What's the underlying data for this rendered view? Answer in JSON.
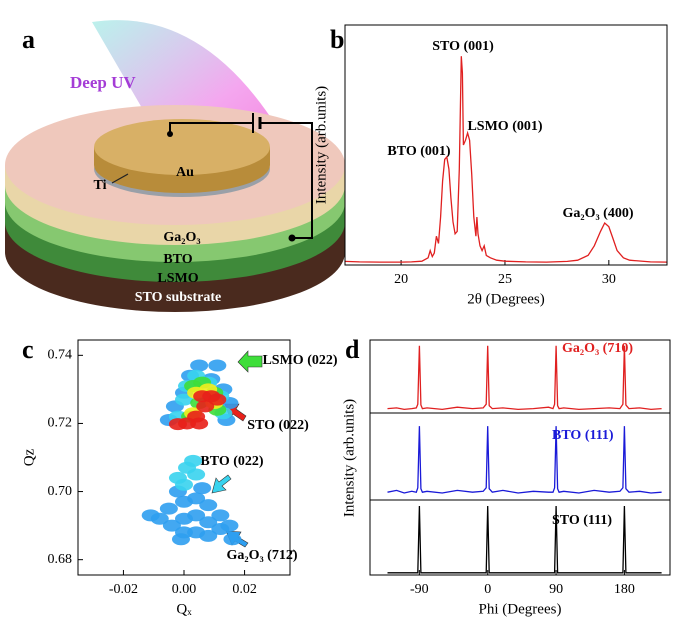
{
  "schematic": {
    "label": "a",
    "light": "Deep UV",
    "electrode": "Au",
    "adhesion": "Ti",
    "layers": [
      "Ga₂O₃",
      "BTO",
      "LSMO",
      "STO substrate"
    ]
  },
  "chart_data": [
    {
      "type": "line",
      "panel_label": "b",
      "xlabel": "2θ (Degrees)",
      "ylabel": "Intensity (arb.units)",
      "color": "#e02020",
      "xlim": [
        17.3,
        32.8
      ],
      "xticks": [
        20,
        25,
        30
      ],
      "ylim": [
        0,
        100
      ],
      "annotations": [
        "STO (001)",
        "LSMO (001)",
        "BTO (001)",
        "Ga₂O₃ (400)"
      ],
      "x": [
        17.3,
        18,
        19,
        20,
        20.5,
        21,
        21.3,
        21.4,
        21.5,
        21.6,
        21.7,
        21.8,
        21.9,
        22,
        22.1,
        22.2,
        22.3,
        22.4,
        22.5,
        22.6,
        22.7,
        22.8,
        22.9,
        22.95,
        23,
        23.1,
        23.2,
        23.3,
        23.4,
        23.5,
        23.6,
        23.65,
        23.7,
        23.8,
        23.9,
        24,
        24.1,
        24.3,
        24.6,
        25,
        26,
        27,
        28,
        28.5,
        29,
        29.3,
        29.6,
        29.8,
        30,
        30.2,
        30.4,
        30.7,
        31,
        32,
        32.8
      ],
      "values": [
        1.5,
        1.3,
        1.2,
        1.2,
        1.3,
        1.6,
        3,
        6,
        3.5,
        5,
        12,
        9,
        20,
        35,
        44,
        45,
        40,
        28,
        18,
        13,
        14,
        40,
        87,
        80,
        50,
        52,
        55,
        52,
        38,
        20,
        12,
        20,
        13,
        8,
        6,
        8,
        4,
        3,
        2,
        1.6,
        1.3,
        1.2,
        1.5,
        2,
        4,
        8,
        14,
        17.5,
        16,
        11,
        6,
        3,
        2,
        1.3,
        1.2
      ]
    },
    {
      "type": "scatter",
      "panel_label": "c",
      "xlabel": "Qₓ",
      "ylabel": "Qz",
      "xlim": [
        -0.035,
        0.035
      ],
      "xticks": [
        -0.02,
        {
          "value": 0,
          "label": "0.00"
        },
        0.02
      ],
      "ylim": [
        0.6755,
        0.7445
      ],
      "yticks": [
        0.68,
        {
          "value": 0.7,
          "label": "0.70"
        },
        0.72,
        0.74
      ],
      "annotations": [
        "LSMO (022)",
        "STO (022)",
        "BTO (022)",
        "Ga₂O₃ (712̄)"
      ],
      "series": [
        {
          "color": "#2f9ff0",
          "x": [
            -0.008,
            -0.005,
            -0.004,
            0,
            0,
            0,
            0.004,
            0.004,
            0.004,
            0.008,
            0.008,
            0.008,
            0.012,
            0.012,
            0.015,
            -0.011,
            -0.002,
            0.006,
            0.016,
            -0.001,
            -0.005,
            0,
            0.002,
            0.005,
            0.009,
            0.013,
            0.015,
            0.014,
            -0.003,
            0.011
          ],
          "values": [
            0.692,
            0.695,
            0.69,
            0.697,
            0.692,
            0.688,
            0.698,
            0.693,
            0.688,
            0.696,
            0.691,
            0.687,
            0.693,
            0.689,
            0.69,
            0.693,
            0.7,
            0.701,
            0.686,
            0.686,
            0.721,
            0.729,
            0.734,
            0.737,
            0.733,
            0.73,
            0.726,
            0.721,
            0.725,
            0.737
          ]
        },
        {
          "color": "#38d3ee",
          "x": [
            -0.002,
            0.001,
            0.004,
            0,
            0.003,
            0.001,
            0.004,
            0.008,
            0.012,
            0.013,
            -0.002,
            0
          ],
          "values": [
            0.704,
            0.707,
            0.705,
            0.702,
            0.709,
            0.731,
            0.734,
            0.732,
            0.728,
            0.723,
            0.722,
            0.727
          ]
        },
        {
          "color": "#3ede3a",
          "x": [
            0.003,
            0.006,
            0.01,
            0.011,
            0.002,
            0.005
          ],
          "values": [
            0.731,
            0.732,
            0.729,
            0.724,
            0.722,
            0.726
          ]
        },
        {
          "color": "#f2ee1e",
          "x": [
            0.004,
            0.008,
            0.01,
            0.003
          ],
          "values": [
            0.729,
            0.73,
            0.726,
            0.723
          ]
        },
        {
          "color": "#e8201a",
          "x": [
            0.006,
            0.009,
            0.011,
            0.007,
            0.004,
            0.001,
            -0.002,
            0.005
          ],
          "values": [
            0.728,
            0.728,
            0.727,
            0.725,
            0.722,
            0.72,
            0.7198,
            0.72
          ]
        }
      ]
    },
    {
      "type": "line",
      "panel_label": "d",
      "xlim": [
        -155,
        240
      ],
      "ylim": [
        0,
        100
      ],
      "x": [
        -132,
        -120,
        -110,
        -100,
        -94,
        -92,
        -90,
        -88,
        -86,
        -80,
        -60,
        -40,
        -20,
        -6,
        -2,
        0,
        2,
        6,
        20,
        40,
        60,
        80,
        86,
        88,
        90,
        92,
        94,
        100,
        120,
        140,
        160,
        174,
        178,
        180,
        182,
        186,
        200,
        215,
        229
      ],
      "series": [
        {
          "name": "Ga₂O₃ (710)",
          "color": "#e02020",
          "values": [
            6,
            7,
            5,
            6,
            7,
            12,
            92,
            11,
            6,
            7,
            5,
            8,
            6,
            7,
            12,
            92,
            10,
            6,
            7,
            5,
            6,
            8,
            6,
            12,
            92,
            10,
            6,
            7,
            5,
            6,
            7,
            6,
            12,
            92,
            11,
            6,
            7,
            5,
            6
          ]
        }
      ]
    },
    {
      "type": "line",
      "ylabel": "Intensity (arb.units)",
      "xlim": [
        -155,
        240
      ],
      "ylim": [
        0,
        100
      ],
      "x": [
        -132,
        -120,
        -110,
        -100,
        -94,
        -92,
        -90,
        -88,
        -86,
        -80,
        -60,
        -40,
        -20,
        -6,
        -2,
        0,
        2,
        6,
        20,
        40,
        60,
        80,
        86,
        88,
        90,
        92,
        94,
        100,
        120,
        140,
        160,
        174,
        178,
        180,
        182,
        186,
        200,
        215,
        229
      ],
      "series": [
        {
          "name": "BTO (111)",
          "color": "#1a1ad8",
          "values": [
            9,
            11,
            8,
            10,
            9,
            14,
            85,
            13,
            9,
            10,
            8,
            11,
            9,
            10,
            14,
            85,
            13,
            9,
            11,
            8,
            10,
            9,
            9,
            14,
            85,
            13,
            9,
            10,
            8,
            11,
            9,
            10,
            14,
            85,
            13,
            9,
            10,
            8,
            9
          ]
        }
      ]
    },
    {
      "type": "line",
      "xlabel": "Phi (Degrees)",
      "xlim": [
        -155,
        240
      ],
      "xticks": [
        -90,
        0,
        90,
        180
      ],
      "ylim": [
        0,
        100
      ],
      "x": [
        -132,
        -120,
        -110,
        -100,
        -94,
        -92,
        -90,
        -88,
        -86,
        -80,
        -60,
        -40,
        -20,
        -6,
        -2,
        0,
        2,
        6,
        20,
        40,
        60,
        80,
        86,
        88,
        90,
        92,
        94,
        100,
        120,
        140,
        160,
        174,
        178,
        180,
        182,
        186,
        200,
        215,
        229
      ],
      "series": [
        {
          "name": "STO (111)",
          "color": "#000000",
          "values": [
            3,
            3,
            3,
            3,
            3,
            3,
            92,
            3,
            3,
            3,
            3,
            3,
            3,
            3,
            3,
            92,
            3,
            3,
            3,
            3,
            3,
            3,
            3,
            3,
            92,
            3,
            3,
            3,
            3,
            3,
            3,
            3,
            3,
            92,
            3,
            3,
            3,
            3,
            3
          ]
        }
      ]
    }
  ]
}
